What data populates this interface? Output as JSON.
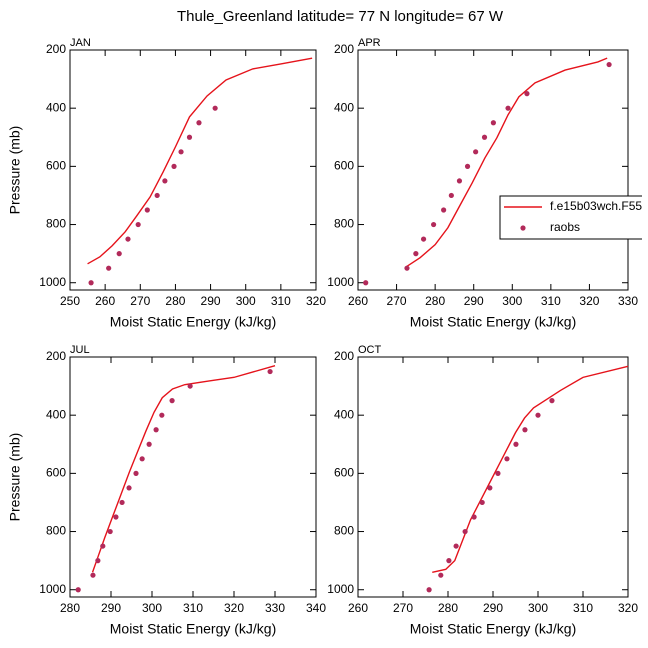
{
  "title": "Thule_Greenland  latitude= 77 N longitude= 67 W",
  "chart_data": [
    {
      "type": "line",
      "title": "JAN",
      "xlabel": "Moist Static Energy (kJ/kg)",
      "ylabel": "Pressure (mb)",
      "xlim": [
        250,
        320
      ],
      "xticks": [
        250,
        260,
        270,
        280,
        290,
        300,
        310,
        320
      ],
      "ylim": [
        1025,
        200
      ],
      "yticks": [
        200,
        400,
        600,
        800,
        1000
      ],
      "series": [
        {
          "mode": "line",
          "color": "#e5131b",
          "x": [
            255,
            258.5,
            262,
            265.7,
            269,
            272.8,
            276.5,
            280,
            284,
            289,
            294.4,
            302,
            310,
            318.9
          ],
          "values": [
            935,
            911,
            873,
            825,
            770,
            705,
            619,
            533,
            430,
            358,
            303,
            265,
            248,
            228
          ]
        },
        {
          "mode": "markers",
          "color": "#b22a5a",
          "x": [
            256,
            261,
            264,
            266.5,
            269.4,
            272,
            274.8,
            277,
            279.6,
            281.6,
            284,
            286.7,
            291.3
          ],
          "values": [
            1000,
            950,
            900,
            850,
            800,
            750,
            700,
            650,
            600,
            550,
            500,
            450,
            400
          ]
        }
      ]
    },
    {
      "type": "line",
      "title": "APR",
      "xlabel": "Moist Static Energy (kJ/kg)",
      "xlim": [
        260,
        330
      ],
      "xticks": [
        260,
        270,
        280,
        290,
        300,
        310,
        320,
        330
      ],
      "ylim": [
        1025,
        200
      ],
      "yticks": [
        200,
        400,
        600,
        800,
        1000
      ],
      "legend": "right",
      "series": [
        {
          "name": "f.e15b03wch.F55",
          "mode": "line",
          "color": "#e5131b",
          "x": [
            272.2,
            276.1,
            280,
            283.3,
            286.4,
            289.6,
            292.9,
            296,
            298.9,
            301.7,
            305.9,
            313.7,
            322.2,
            324.6
          ],
          "values": [
            948,
            914,
            869,
            811,
            735,
            657,
            571,
            502,
            423,
            361,
            313,
            269,
            241,
            228
          ]
        },
        {
          "name": "raobs",
          "mode": "markers",
          "color": "#b22a5a",
          "x": [
            262,
            272.7,
            275,
            277,
            279.6,
            282.2,
            284.2,
            286.3,
            288.4,
            290.5,
            292.8,
            295.1,
            298.9,
            303.8,
            325.1
          ],
          "values": [
            1000,
            950,
            900,
            850,
            800,
            750,
            700,
            650,
            600,
            550,
            500,
            450,
            400,
            350,
            250
          ]
        }
      ]
    },
    {
      "type": "line",
      "title": "JUL",
      "xlabel": "Moist Static Energy (kJ/kg)",
      "ylabel": "Pressure (mb)",
      "xlim": [
        280,
        340
      ],
      "xticks": [
        280,
        290,
        300,
        310,
        320,
        330,
        340
      ],
      "ylim": [
        1025,
        200
      ],
      "yticks": [
        200,
        400,
        600,
        800,
        1000
      ],
      "series": [
        {
          "mode": "line",
          "color": "#e5131b",
          "x": [
            285.5,
            287,
            288.5,
            290.5,
            292.5,
            294.5,
            296.5,
            298.5,
            300.5,
            302.5,
            305,
            308,
            315,
            320,
            330
          ],
          "values": [
            940,
            880,
            820,
            745,
            670,
            595,
            525,
            455,
            390,
            340,
            310,
            295,
            280,
            270,
            230
          ]
        },
        {
          "mode": "markers",
          "color": "#b22a5a",
          "x": [
            282,
            285.6,
            286.8,
            288,
            289.8,
            291.2,
            292.7,
            294.4,
            296.1,
            297.6,
            299.3,
            301,
            302.4,
            304.9,
            309.3,
            328.8
          ],
          "values": [
            1000,
            950,
            900,
            850,
            800,
            750,
            700,
            650,
            600,
            550,
            500,
            450,
            400,
            350,
            300,
            250
          ]
        }
      ]
    },
    {
      "type": "line",
      "title": "OCT",
      "xlabel": "Moist Static Energy (kJ/kg)",
      "xlim": [
        260,
        320
      ],
      "xticks": [
        260,
        270,
        280,
        290,
        300,
        310,
        320
      ],
      "ylim": [
        1025,
        200
      ],
      "yticks": [
        200,
        400,
        600,
        800,
        1000
      ],
      "series": [
        {
          "mode": "line",
          "color": "#e5131b",
          "x": [
            276.5,
            279.5,
            281.5,
            282.5,
            283.5,
            285,
            287,
            289,
            291,
            293,
            295,
            297,
            299,
            302,
            305,
            310,
            320
          ],
          "values": [
            940,
            930,
            900,
            860,
            820,
            760,
            700,
            640,
            580,
            520,
            460,
            410,
            375,
            345,
            315,
            270,
            232
          ]
        },
        {
          "mode": "markers",
          "color": "#b22a5a",
          "x": [
            275.8,
            278.4,
            280.2,
            281.8,
            283.8,
            285.8,
            287.6,
            289.3,
            291.1,
            293.1,
            295.1,
            297.1,
            300,
            303.1
          ],
          "values": [
            1000,
            950,
            900,
            850,
            800,
            750,
            700,
            650,
            600,
            550,
            500,
            450,
            400,
            350
          ]
        }
      ]
    }
  ]
}
